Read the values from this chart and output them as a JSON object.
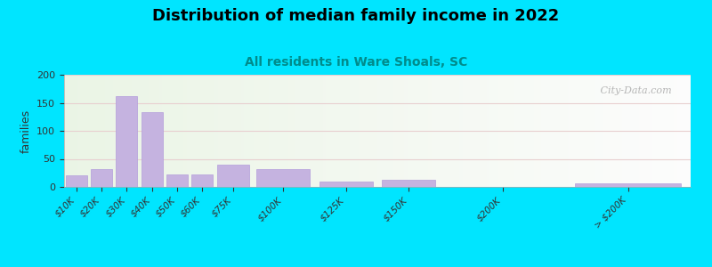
{
  "title": "Distribution of median family income in 2022",
  "subtitle": "All residents in Ware Shoals, SC",
  "ylabel": "families",
  "categories": [
    "$10K",
    "$20K",
    "$30K",
    "$40K",
    "$50K",
    "$60K",
    "$75K",
    "$100K",
    "$125K",
    "$150K",
    "$200K",
    "> $200K"
  ],
  "bin_edges": [
    0,
    10,
    20,
    30,
    40,
    50,
    60,
    75,
    100,
    125,
    150,
    200,
    250
  ],
  "values": [
    20,
    32,
    162,
    133,
    22,
    22,
    40,
    32,
    10,
    12,
    0,
    6
  ],
  "bar_color": "#c5b3e0",
  "bar_edge_color": "#b39ddb",
  "ylim": [
    0,
    200
  ],
  "yticks": [
    0,
    50,
    100,
    150,
    200
  ],
  "bg_color_top_left": "#d4edda",
  "bg_color_right": "#f5f5f0",
  "outer_bg": "#00e5ff",
  "title_fontsize": 13,
  "subtitle_fontsize": 10,
  "subtitle_color": "#008b8b",
  "grid_color": "#e8d0d0",
  "watermark": " City-Data.com"
}
